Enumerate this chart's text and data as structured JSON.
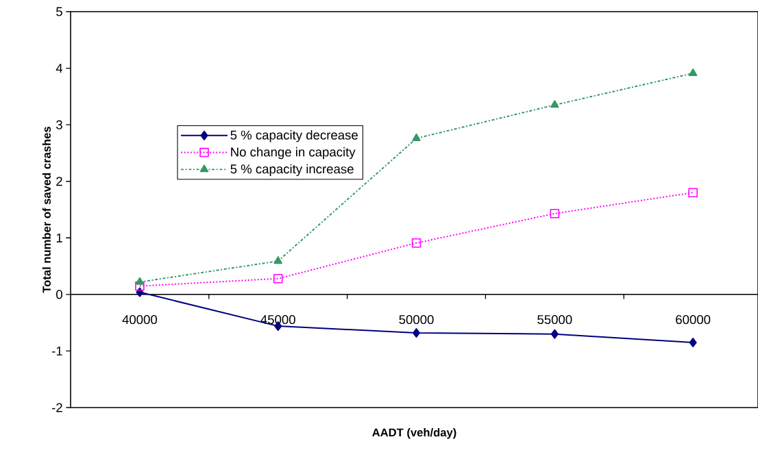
{
  "chart_data": {
    "type": "line",
    "xlabel": "AADT (veh/day)",
    "ylabel": "Total number of saved crashes",
    "categories": [
      "40000",
      "45000",
      "50000",
      "55000",
      "60000"
    ],
    "series": [
      {
        "name": "5 % capacity decrease",
        "color": "#000080",
        "marker": "diamond",
        "line_style": "solid",
        "values": [
          0.04,
          -0.56,
          -0.68,
          -0.7,
          -0.85
        ]
      },
      {
        "name": "No change in capacity",
        "color": "#ff00ff",
        "marker": "square",
        "line_style": "dotted",
        "values": [
          0.15,
          0.28,
          0.91,
          1.43,
          1.8
        ]
      },
      {
        "name": "5 % capacity increase",
        "color": "#339966",
        "marker": "triangle",
        "line_style": "dashdot",
        "values": [
          0.22,
          0.59,
          2.76,
          3.35,
          3.91
        ]
      }
    ],
    "ylim": [
      -2,
      5
    ],
    "yticks": [
      -2,
      -1,
      0,
      1,
      2,
      3,
      4,
      5
    ],
    "grid": false,
    "legend": "left"
  }
}
